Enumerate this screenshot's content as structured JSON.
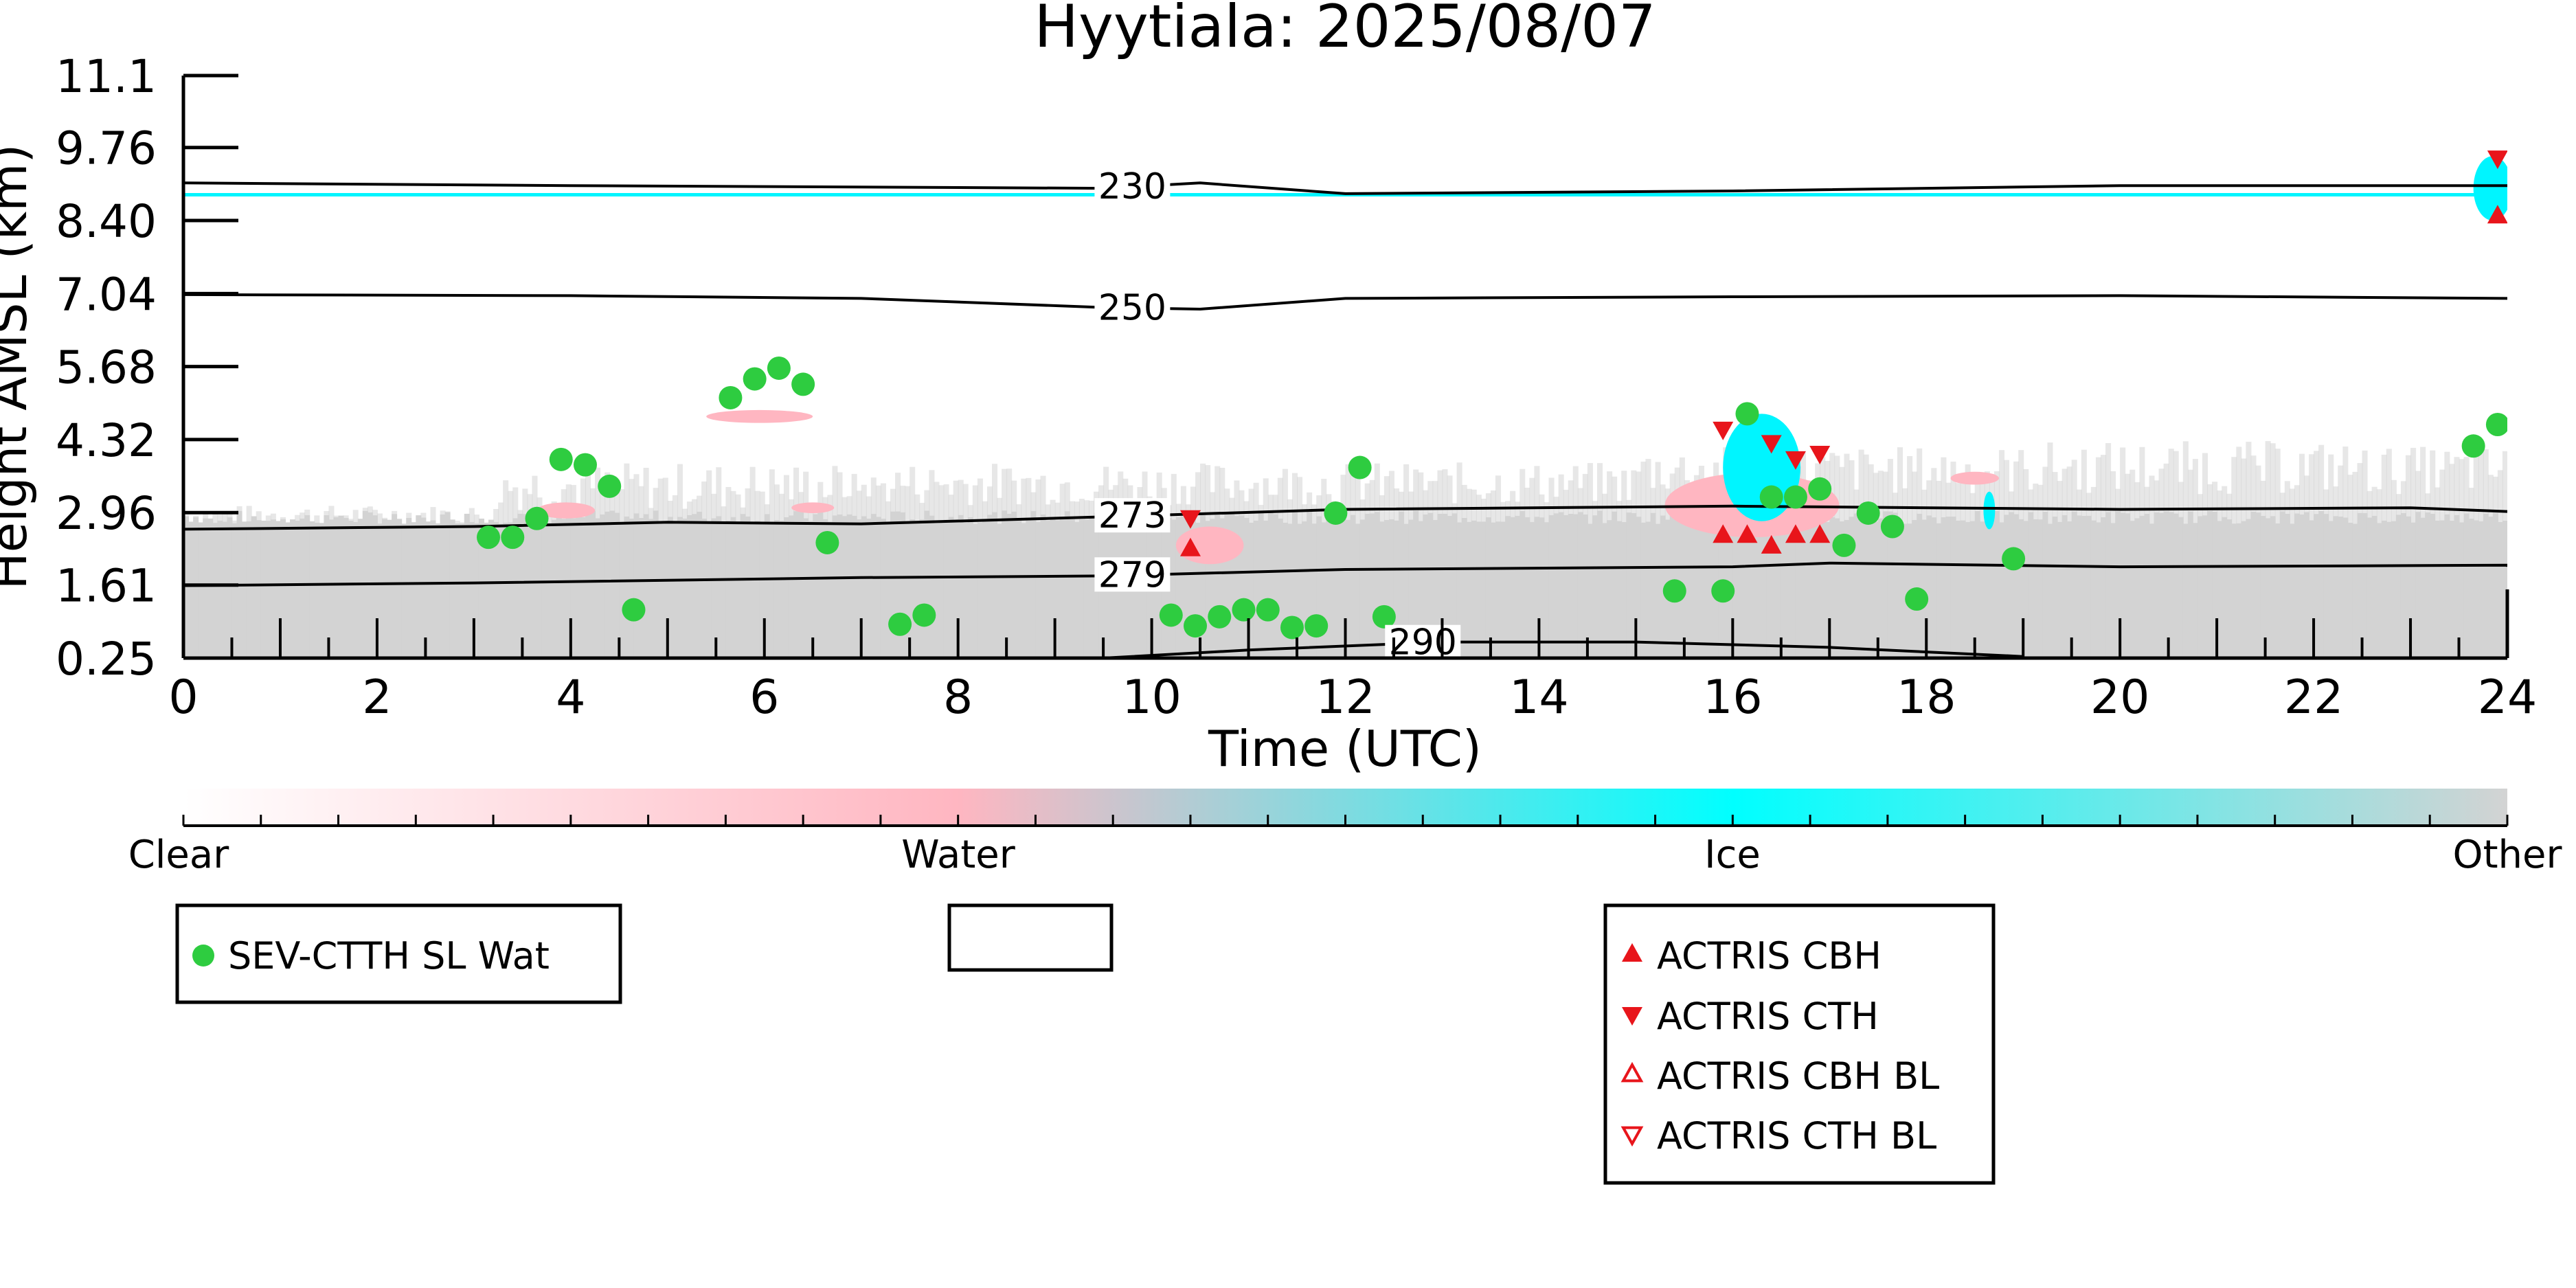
{
  "chart_data": {
    "type": "scatter",
    "title": "Hyytiala: 2025/08/07",
    "xlabel": "Time (UTC)",
    "ylabel": "Height AMSL (km)",
    "xlim": [
      0,
      24
    ],
    "ylim": [
      0.25,
      11.1
    ],
    "x_ticks": [
      "0",
      "2",
      "4",
      "6",
      "8",
      "10",
      "12",
      "14",
      "16",
      "18",
      "20",
      "22",
      "24"
    ],
    "y_ticks": [
      "0.25",
      "1.61",
      "2.96",
      "4.32",
      "5.68",
      "7.04",
      "8.40",
      "9.76",
      "11.1"
    ],
    "y_tick_values": [
      0.25,
      1.61,
      2.96,
      4.32,
      5.68,
      7.04,
      8.4,
      9.76,
      11.1
    ],
    "grid": false,
    "colorbar": {
      "labels": [
        "Clear",
        "Water",
        "Ice",
        "Other"
      ],
      "colors": [
        "#ffffff",
        "#ffb6c1",
        "#00ffff",
        "#d3d3d3"
      ]
    },
    "colors": {
      "sev": "#2ecc40",
      "actris": "#e8151b",
      "other_fill": "#d3d3d3",
      "water": "#ffb6c1",
      "ice": "#00f5ff"
    },
    "temperature_contours": [
      {
        "label": "230",
        "label_x": 9.8,
        "points": [
          [
            0,
            9.1
          ],
          [
            4,
            9.05
          ],
          [
            9.5,
            9.0
          ],
          [
            10.5,
            9.1
          ],
          [
            12,
            8.9
          ],
          [
            16,
            8.95
          ],
          [
            20,
            9.05
          ],
          [
            24,
            9.05
          ]
        ]
      },
      {
        "label": "250",
        "label_x": 9.8,
        "points": [
          [
            0,
            7.02
          ],
          [
            4,
            7.0
          ],
          [
            7,
            6.95
          ],
          [
            9.5,
            6.78
          ],
          [
            10.5,
            6.75
          ],
          [
            12,
            6.95
          ],
          [
            16,
            6.98
          ],
          [
            20,
            7.0
          ],
          [
            24,
            6.95
          ]
        ]
      },
      {
        "label": "273",
        "label_x": 9.8,
        "points": [
          [
            0,
            2.65
          ],
          [
            3,
            2.7
          ],
          [
            5,
            2.78
          ],
          [
            7,
            2.75
          ],
          [
            9.5,
            2.88
          ],
          [
            12,
            3.02
          ],
          [
            16,
            3.08
          ],
          [
            20,
            3.02
          ],
          [
            23,
            3.05
          ],
          [
            24,
            2.98
          ]
        ]
      },
      {
        "label": "279",
        "label_x": 9.8,
        "points": [
          [
            0,
            1.6
          ],
          [
            3,
            1.65
          ],
          [
            7,
            1.75
          ],
          [
            9.5,
            1.78
          ],
          [
            12,
            1.9
          ],
          [
            16,
            1.95
          ],
          [
            17,
            2.02
          ],
          [
            20,
            1.95
          ],
          [
            24,
            1.98
          ],
          [
            24,
            1.95
          ]
        ]
      },
      {
        "label": "290",
        "label_x": 12.8,
        "points": [
          [
            9.5,
            0.25
          ],
          [
            11,
            0.4
          ],
          [
            13,
            0.55
          ],
          [
            15,
            0.55
          ],
          [
            17,
            0.45
          ],
          [
            19,
            0.28
          ]
        ]
      }
    ],
    "series": [
      {
        "name": "SEV-CTTH SL Wat",
        "marker": "circle",
        "points": [
          [
            3.15,
            2.5
          ],
          [
            3.4,
            2.5
          ],
          [
            3.65,
            2.85
          ],
          [
            3.9,
            3.95
          ],
          [
            4.15,
            3.85
          ],
          [
            4.4,
            3.45
          ],
          [
            4.65,
            1.15
          ],
          [
            5.65,
            5.1
          ],
          [
            5.9,
            5.45
          ],
          [
            6.15,
            5.65
          ],
          [
            6.4,
            5.35
          ],
          [
            6.65,
            2.4
          ],
          [
            7.4,
            0.88
          ],
          [
            7.65,
            1.05
          ],
          [
            10.2,
            1.05
          ],
          [
            10.45,
            0.85
          ],
          [
            10.7,
            1.02
          ],
          [
            10.95,
            1.15
          ],
          [
            11.2,
            1.15
          ],
          [
            11.45,
            0.82
          ],
          [
            11.7,
            0.85
          ],
          [
            11.9,
            2.95
          ],
          [
            12.15,
            3.8
          ],
          [
            12.4,
            1.02
          ],
          [
            15.4,
            1.5
          ],
          [
            15.9,
            1.5
          ],
          [
            16.15,
            4.8
          ],
          [
            16.4,
            3.25
          ],
          [
            16.65,
            3.25
          ],
          [
            16.9,
            3.4
          ],
          [
            17.15,
            2.35
          ],
          [
            17.4,
            2.95
          ],
          [
            17.65,
            2.7
          ],
          [
            17.9,
            1.35
          ],
          [
            18.9,
            2.1
          ],
          [
            23.65,
            4.2
          ],
          [
            23.9,
            4.6
          ]
        ]
      },
      {
        "name": "ACTRIS CBH",
        "marker": "triangle-up",
        "points": [
          [
            10.4,
            2.3
          ],
          [
            15.9,
            2.55
          ],
          [
            16.15,
            2.55
          ],
          [
            16.4,
            2.35
          ],
          [
            16.65,
            2.55
          ],
          [
            16.9,
            2.55
          ],
          [
            23.9,
            8.5
          ]
        ]
      },
      {
        "name": "ACTRIS CTH",
        "marker": "triangle-down",
        "points": [
          [
            10.4,
            2.85
          ],
          [
            15.9,
            4.5
          ],
          [
            16.4,
            4.25
          ],
          [
            16.65,
            3.95
          ],
          [
            16.9,
            4.05
          ],
          [
            23.9,
            9.55
          ]
        ]
      },
      {
        "name": "ACTRIS CBH BL",
        "marker": "triangle-up-open",
        "points": []
      },
      {
        "name": "ACTRIS CTH BL",
        "marker": "triangle-down-open",
        "points": []
      }
    ],
    "legends": {
      "left": [
        "SEV-CTTH SL Wat"
      ],
      "right": [
        "ACTRIS CBH",
        "ACTRIS CTH",
        "ACTRIS CBH BL",
        "ACTRIS CTH BL"
      ]
    }
  }
}
